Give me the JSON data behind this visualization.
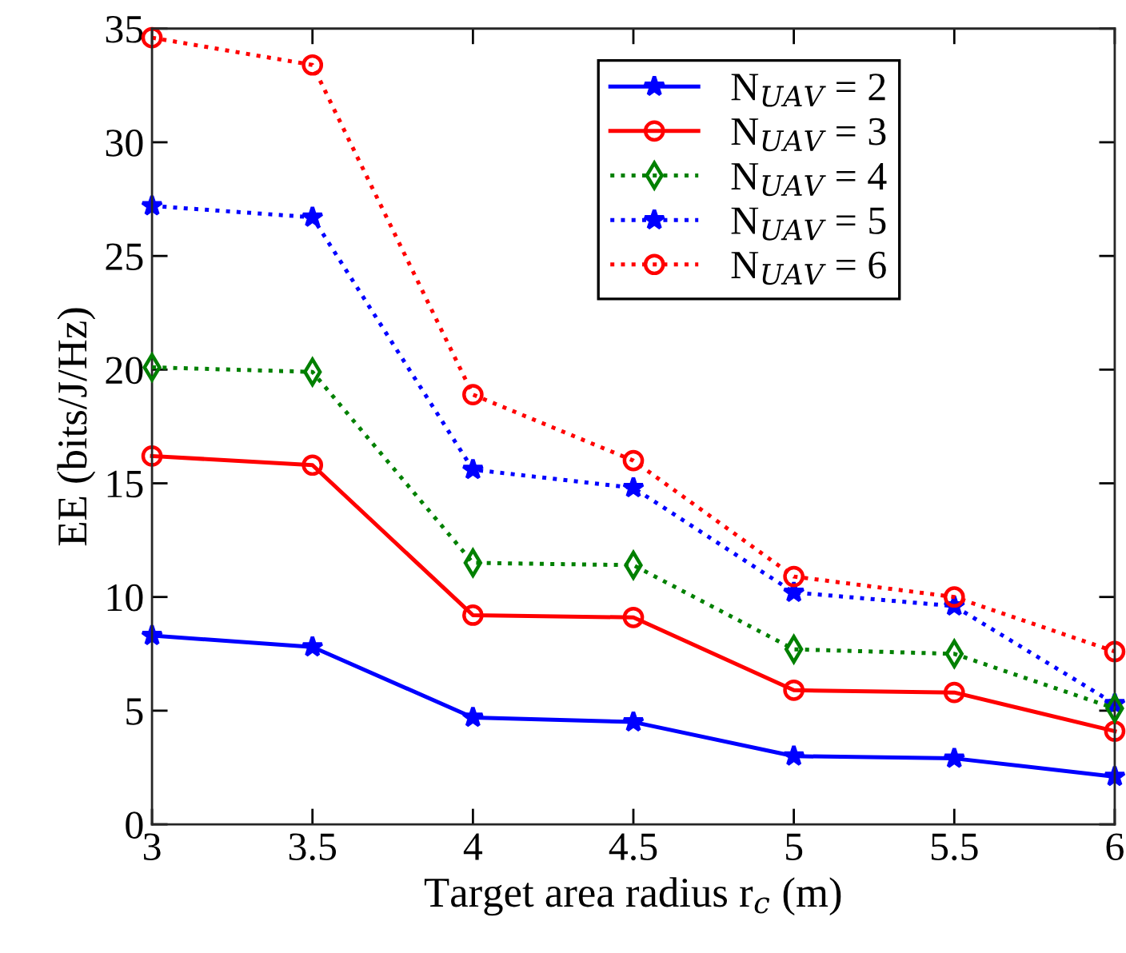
{
  "chart_data": {
    "type": "line",
    "xlabel": "Target area radius r$_{c}$ (m)",
    "ylabel": "EE (bits/J/Hz)",
    "x": [
      3,
      3.5,
      4,
      4.5,
      5,
      5.5,
      6
    ],
    "xlim": [
      3,
      6
    ],
    "xticks": [
      3,
      3.5,
      4,
      4.5,
      5,
      5.5,
      6
    ],
    "ylim": [
      0,
      35
    ],
    "yticks": [
      0,
      5,
      10,
      15,
      20,
      25,
      30,
      35
    ],
    "grid": false,
    "legend": "top",
    "series": [
      {
        "name": "N$_{UAV}$ = 2",
        "color": "#0000ff",
        "marker": "star",
        "line_style": "solid",
        "values": [
          8.3,
          7.8,
          4.7,
          4.5,
          3.0,
          2.9,
          2.1
        ]
      },
      {
        "name": "N$_{UAV}$ = 3",
        "color": "#ff0000",
        "marker": "circle",
        "line_style": "solid",
        "values": [
          16.2,
          15.8,
          9.2,
          9.1,
          5.9,
          5.8,
          4.1
        ]
      },
      {
        "name": "N$_{UAV}$ = 4",
        "color": "#008000",
        "marker": "diamond",
        "line_style": "dotted",
        "values": [
          20.1,
          19.9,
          11.5,
          11.4,
          7.7,
          7.5,
          5.1
        ]
      },
      {
        "name": "N$_{UAV}$ = 5",
        "color": "#0000ff",
        "marker": "star",
        "line_style": "dotted",
        "values": [
          27.2,
          26.7,
          15.6,
          14.8,
          10.2,
          9.6,
          5.3
        ]
      },
      {
        "name": "N$_{UAV}$ = 6",
        "color": "#ff0000",
        "marker": "circle",
        "line_style": "dotted",
        "values": [
          34.6,
          33.4,
          18.9,
          16.0,
          10.9,
          10.0,
          7.6
        ]
      }
    ]
  }
}
